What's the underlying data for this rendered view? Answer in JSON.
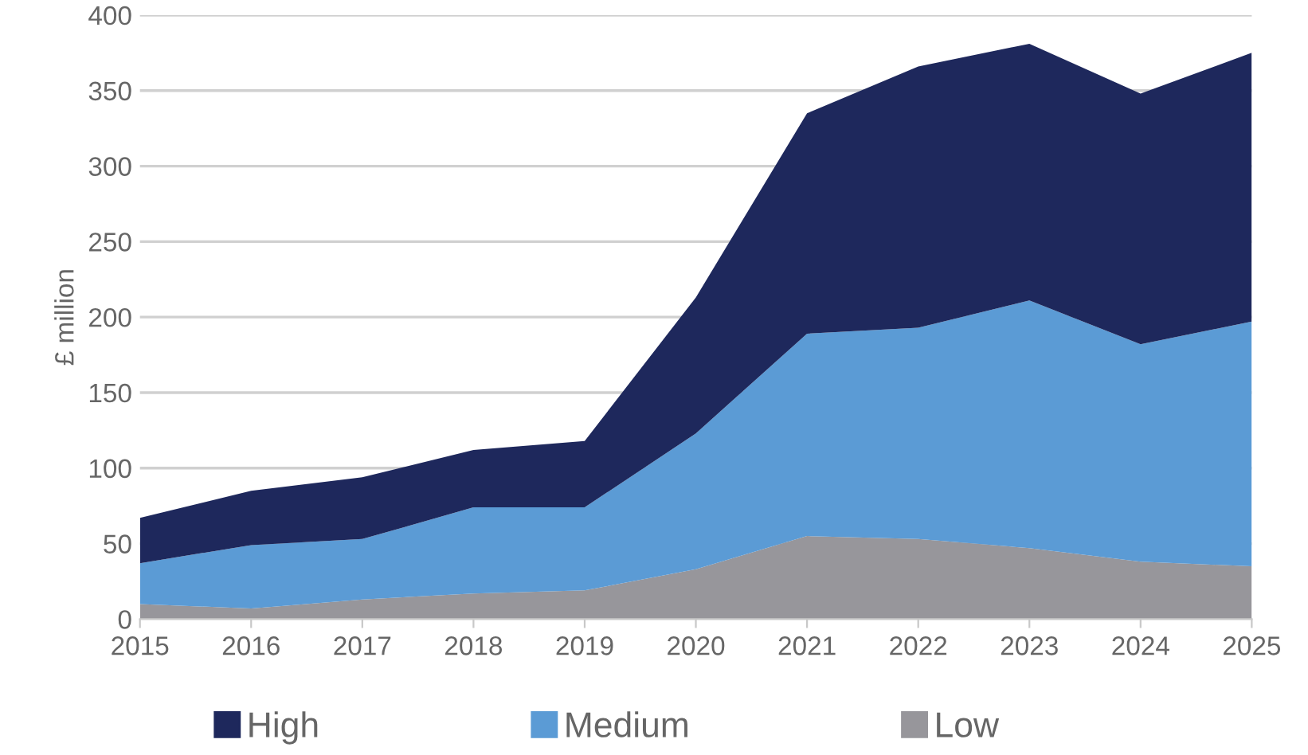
{
  "chart_data": {
    "type": "area",
    "stacked": true,
    "ylabel": "£ million",
    "categories": [
      "2015",
      "2016",
      "2017",
      "2018",
      "2019",
      "2020",
      "2021",
      "2022",
      "2023",
      "2024",
      "2025"
    ],
    "series": [
      {
        "name": "Low",
        "color": "#97969b",
        "values": [
          10,
          7,
          13,
          17,
          19,
          33,
          55,
          53,
          47,
          38,
          35
        ]
      },
      {
        "name": "Medium",
        "color": "#5b9bd5",
        "values": [
          27,
          42,
          40,
          57,
          55,
          90,
          134,
          140,
          164,
          144,
          162
        ]
      },
      {
        "name": "High",
        "color": "#1e285c",
        "values": [
          30,
          36,
          41,
          38,
          44,
          90,
          146,
          173,
          170,
          166,
          178
        ]
      }
    ],
    "ylim": [
      0,
      400
    ],
    "yticks": [
      0,
      50,
      100,
      150,
      200,
      250,
      300,
      350,
      400
    ],
    "grid": "y",
    "legend": "bottom"
  }
}
